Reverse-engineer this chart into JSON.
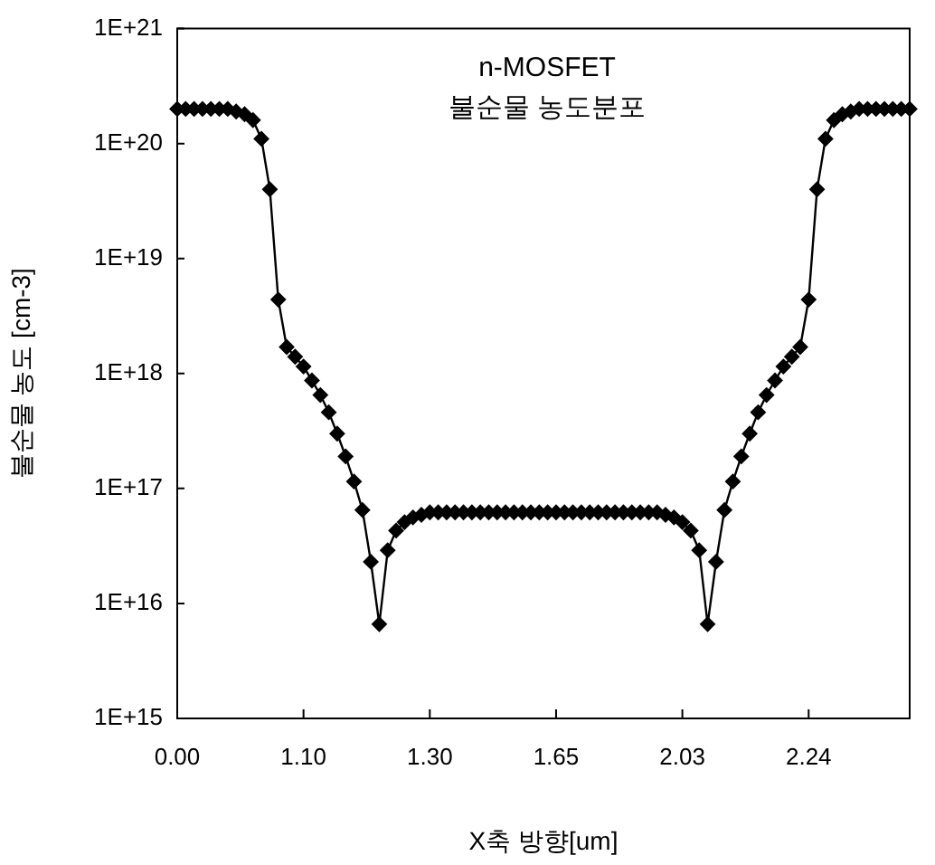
{
  "chart_data": {
    "type": "line",
    "title": "n-MOSFET",
    "subtitle": "불순물 농도분포",
    "xlabel": "X축 방향[um]",
    "ylabel": "불순물 농도 [cm-3]",
    "categories": [
      "0.00",
      null,
      null,
      null,
      null,
      null,
      null,
      null,
      null,
      null,
      null,
      null,
      null,
      null,
      null,
      "1.10",
      null,
      null,
      null,
      null,
      null,
      null,
      null,
      null,
      null,
      null,
      null,
      null,
      null,
      null,
      "1.30",
      null,
      null,
      null,
      null,
      null,
      null,
      null,
      null,
      null,
      null,
      null,
      null,
      null,
      null,
      "1.65",
      null,
      null,
      null,
      null,
      null,
      null,
      null,
      null,
      null,
      null,
      null,
      null,
      null,
      null,
      "2.03",
      null,
      null,
      null,
      null,
      null,
      null,
      null,
      null,
      null,
      null,
      null,
      null,
      null,
      null,
      "2.24",
      null,
      null,
      null,
      null,
      null,
      null,
      null,
      null,
      null,
      null,
      null,
      null
    ],
    "series": [
      {
        "color": "#000000",
        "values": [
          2e+20,
          2e+20,
          2e+20,
          2e+20,
          2e+20,
          2e+20,
          2e+20,
          1.9e+20,
          1.8e+20,
          1.6e+20,
          1.1e+20,
          4e+19,
          4.4e+18,
          1.7e+18,
          1.4e+18,
          1.15e+18,
          8.7e+17,
          6.5e+17,
          4.6e+17,
          3e+17,
          1.9e+17,
          1.15e+17,
          6.5e+16,
          2.3e+16,
          6600000000000000.0,
          2.9e+16,
          4.3e+16,
          5.1e+16,
          5.6e+16,
          5.9e+16,
          6.2e+16,
          6.2e+16,
          6.2e+16,
          6.2e+16,
          6.2e+16,
          6.2e+16,
          6.2e+16,
          6.2e+16,
          6.2e+16,
          6.2e+16,
          6.2e+16,
          6.2e+16,
          6.2e+16,
          6.2e+16,
          6.2e+16,
          6.2e+16,
          6.2e+16,
          6.2e+16,
          6.2e+16,
          6.2e+16,
          6.2e+16,
          6.2e+16,
          6.2e+16,
          6.2e+16,
          6.2e+16,
          6.2e+16,
          6.2e+16,
          6.2e+16,
          5.9e+16,
          5.6e+16,
          5.1e+16,
          4.3e+16,
          2.9e+16,
          6600000000000000.0,
          2.3e+16,
          6.5e+16,
          1.15e+17,
          1.9e+17,
          3e+17,
          4.6e+17,
          6.5e+17,
          8.7e+17,
          1.15e+18,
          1.4e+18,
          1.7e+18,
          4.4e+18,
          4e+19,
          1.1e+20,
          1.6e+20,
          1.8e+20,
          1.9e+20,
          2e+20,
          2e+20,
          2e+20,
          2e+20,
          2e+20,
          2e+20,
          2e+20
        ]
      }
    ],
    "log": "y",
    "ylim": [
      1000000000000000.0,
      1e+21
    ],
    "yticks": [
      {
        "value": 1000000000000000.0,
        "label": "1E+15"
      },
      {
        "value": 1e+16,
        "label": "1E+16"
      },
      {
        "value": 1e+17,
        "label": "1E+17"
      },
      {
        "value": 1e+18,
        "label": "1E+18"
      },
      {
        "value": 1e+19,
        "label": "1E+19"
      },
      {
        "value": 1e+20,
        "label": "1E+20"
      },
      {
        "value": 1e+21,
        "label": "1E+21"
      }
    ],
    "marker": "diamond",
    "line_style": "solid"
  }
}
